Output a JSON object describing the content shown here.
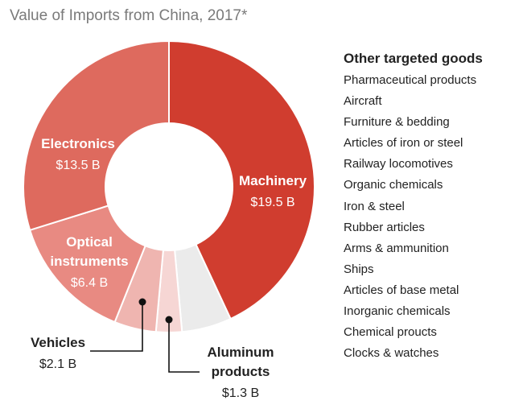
{
  "chart_data": {
    "type": "pie",
    "title": "Value of Imports from China, 2017*",
    "value_unit": "B",
    "categories": [
      "Machinery",
      "Other targeted goods",
      "Aluminum products",
      "Vehicles",
      "Optical instruments",
      "Electronics"
    ],
    "values": [
      19.5,
      2.5,
      1.3,
      2.1,
      6.4,
      13.5
    ],
    "value_labels": [
      "$19.5 B",
      "",
      "$1.3 B",
      "$2.1 B",
      "$6.4 B",
      "$13.5 B"
    ],
    "label_lines": [
      [
        "Machinery"
      ],
      [],
      [
        "Aluminum",
        "products"
      ],
      [
        "Vehicles"
      ],
      [
        "Optical",
        "instruments"
      ],
      [
        "Electronics"
      ]
    ],
    "colors": [
      "#d03d2f",
      "#ebebeb",
      "#f6d6d4",
      "#efb5b0",
      "#e88a82",
      "#de6a5e"
    ],
    "label_colors": [
      "#ffffff",
      "#222222",
      "#222222",
      "#222222",
      "#ffffff",
      "#ffffff"
    ],
    "donut": true
  },
  "legend": {
    "title": "Other targeted goods",
    "items": [
      "Pharmaceutical products",
      "Aircraft",
      "Furniture & bedding",
      "Articles of iron or steel",
      "Railway locomotives",
      "Organic chemicals",
      "Iron & steel",
      "Rubber articles",
      "Arms & ammunition",
      "Ships",
      "Articles of base metal",
      "Inorganic chemicals",
      "Chemical proucts",
      "Clocks & watches"
    ]
  }
}
